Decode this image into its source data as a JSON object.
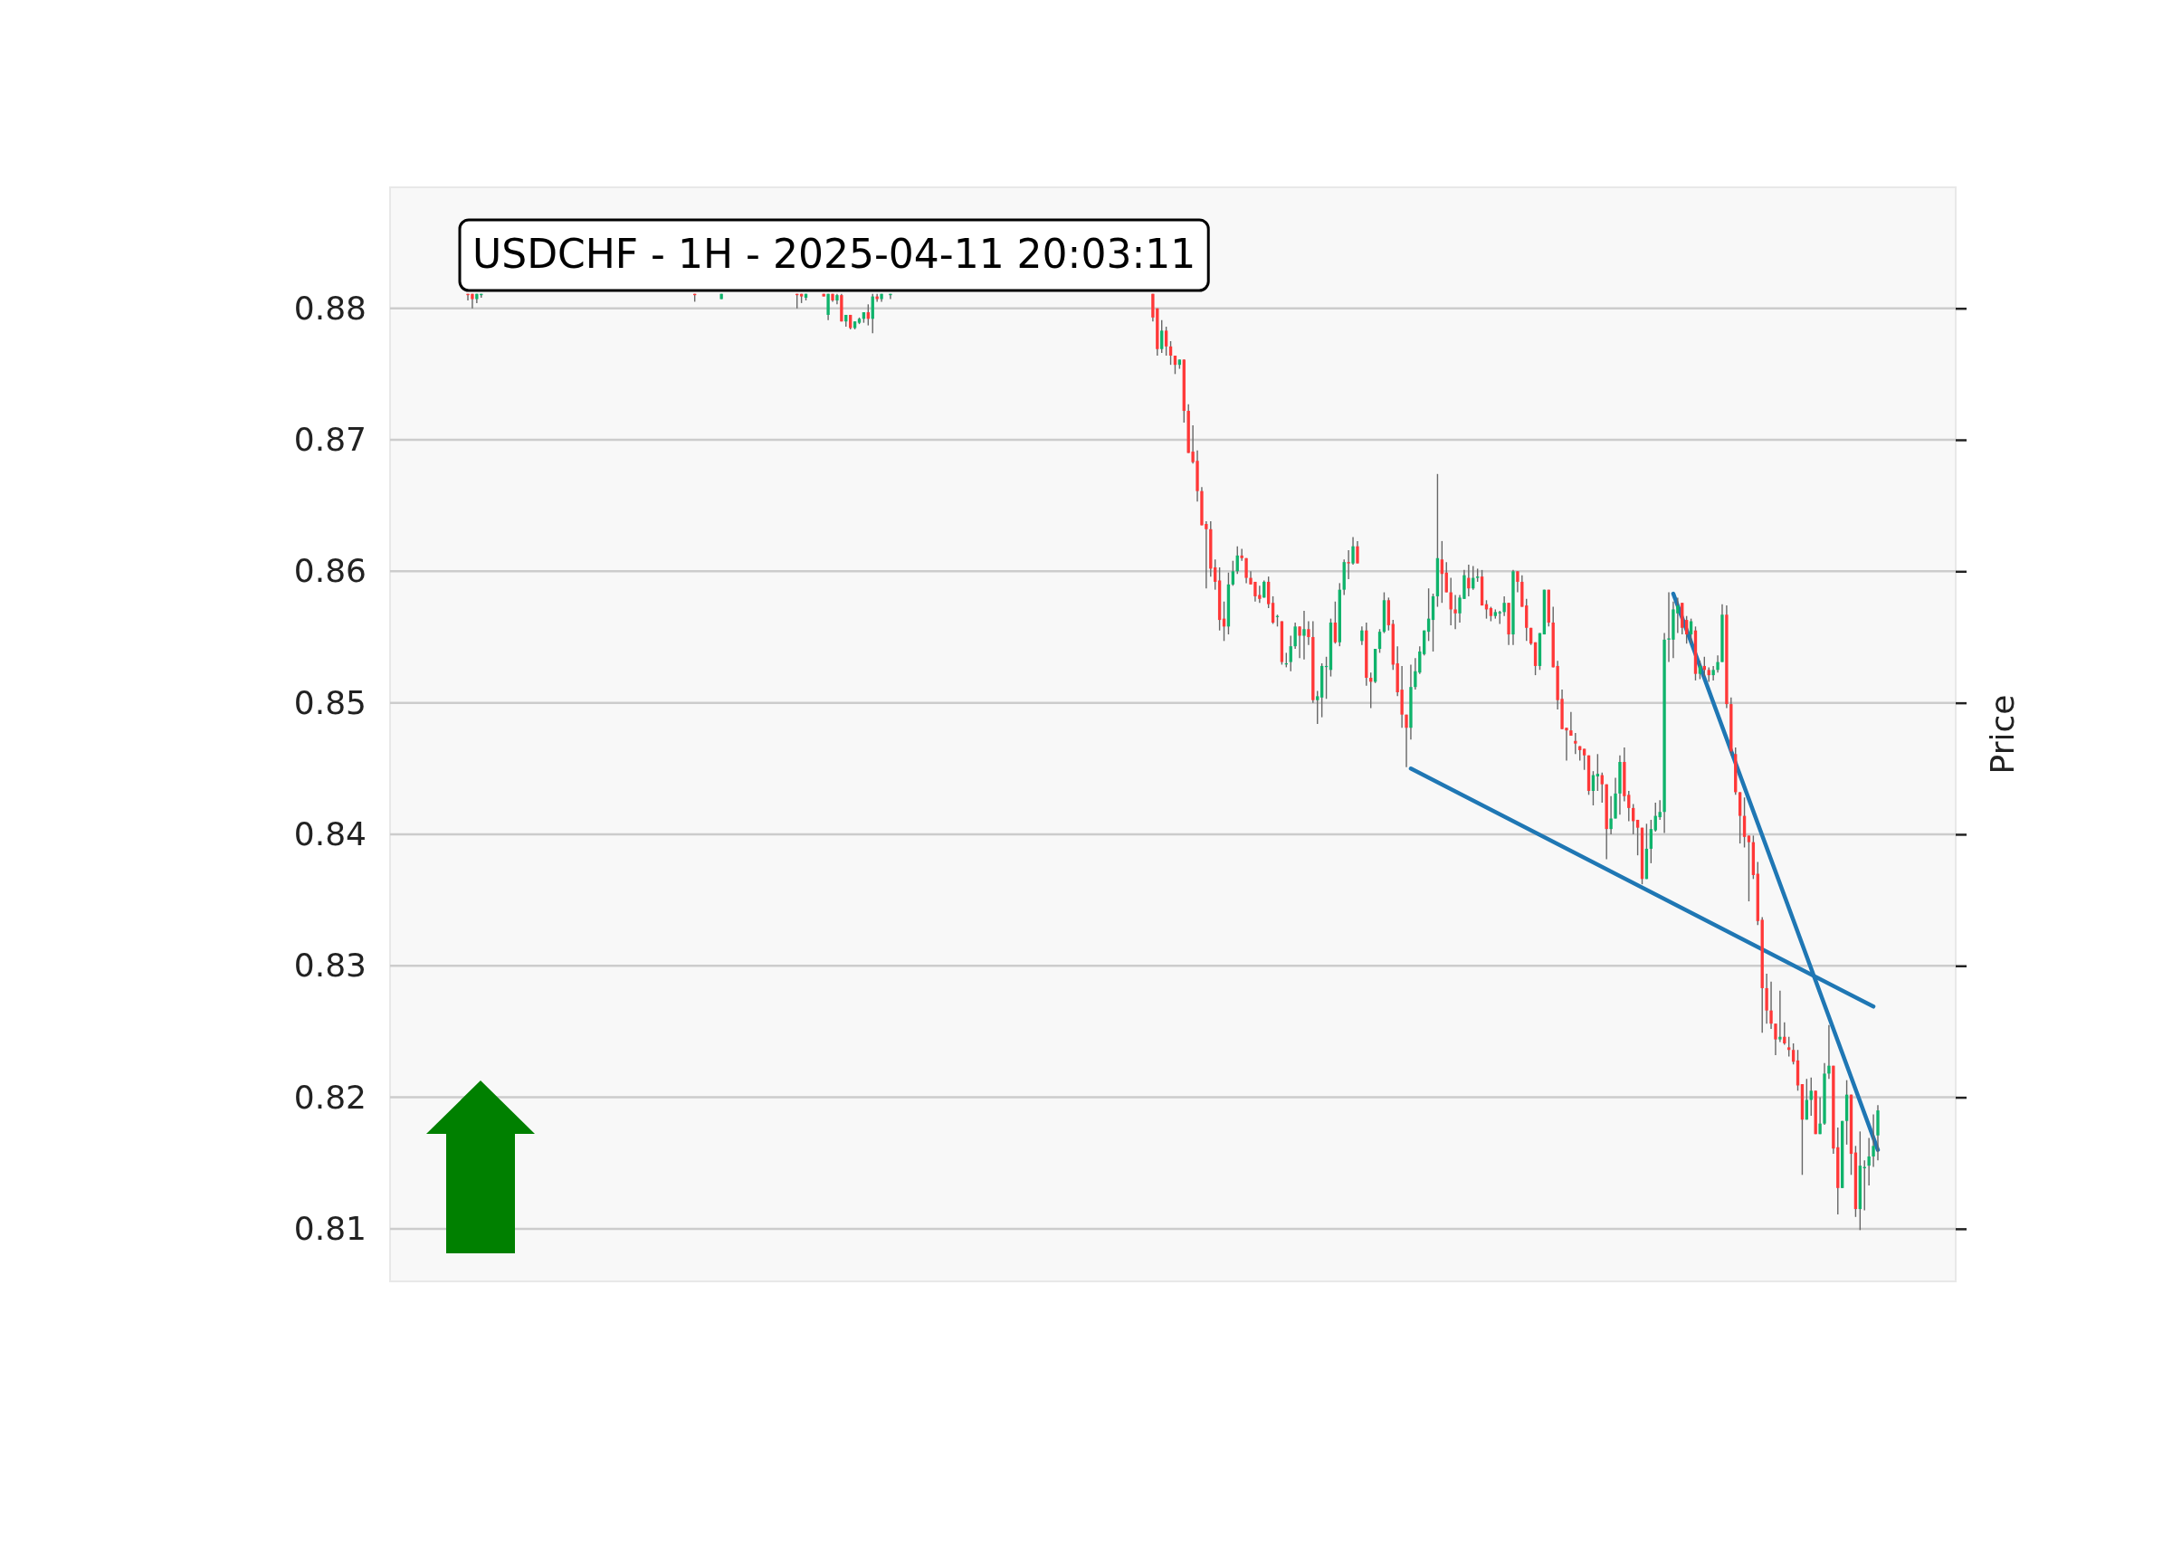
{
  "chart_data": {
    "type": "candlestick",
    "title": "USDCHF - 1H - 2025-04-11 20:03:11",
    "ylabel": "Price",
    "ylim": [
      0.806,
      0.8892
    ],
    "yticks": [
      0.81,
      0.82,
      0.83,
      0.84,
      0.85,
      0.86,
      0.87,
      0.88
    ],
    "grid": "y",
    "tick_labels": "y",
    "categories": [
      null,
      null,
      null,
      null,
      null,
      null,
      null,
      null,
      null,
      null,
      null,
      null,
      null,
      null,
      null,
      null,
      null,
      null,
      null,
      null,
      null,
      null,
      null,
      null,
      null,
      null,
      null,
      null,
      null,
      null,
      null,
      null,
      null,
      null,
      null,
      null,
      null,
      null,
      null,
      null,
      null,
      null,
      null,
      null,
      null,
      null,
      null,
      null,
      null,
      null,
      null,
      null,
      null,
      null,
      null,
      null,
      null,
      null,
      null,
      null,
      null,
      null,
      null,
      null,
      null,
      null,
      null,
      null,
      null,
      null,
      null,
      null,
      null,
      null,
      null,
      null,
      null,
      null,
      null,
      null,
      null,
      null,
      null,
      null,
      null,
      null,
      null,
      null,
      null,
      null,
      null,
      null,
      null,
      null,
      null,
      null,
      null,
      null,
      null,
      null,
      null,
      null,
      null,
      null,
      null,
      null,
      null,
      null,
      null,
      null,
      null,
      null,
      null,
      null,
      null,
      null,
      null,
      null,
      null,
      null,
      null,
      null,
      null,
      null,
      null,
      null,
      null,
      null,
      null,
      null,
      null,
      null,
      null,
      null,
      null,
      null,
      null,
      null,
      null,
      null,
      null,
      null,
      null,
      null,
      null,
      null,
      null,
      null,
      null,
      null,
      null,
      null,
      null,
      null,
      null,
      null,
      null,
      null,
      null,
      null,
      null,
      null,
      null,
      null,
      null,
      null,
      null,
      null,
      null,
      null,
      null,
      null,
      null,
      null,
      null,
      null,
      null,
      null,
      null,
      null,
      null,
      null,
      null,
      null,
      null,
      null,
      null,
      null,
      null,
      null,
      null,
      null,
      null,
      null,
      null,
      null,
      null,
      null,
      null,
      null,
      null,
      null,
      null,
      null,
      null,
      null,
      null,
      null,
      null,
      null,
      null,
      null,
      null,
      null,
      null,
      null,
      null,
      null,
      null,
      null,
      null,
      null,
      null,
      null,
      null,
      null,
      null,
      null,
      null,
      null,
      null,
      null,
      null,
      null,
      null,
      null,
      null,
      null,
      null,
      null,
      null,
      null,
      null,
      null,
      null,
      null,
      null,
      null,
      null,
      null,
      null,
      null,
      null,
      null,
      null,
      null,
      null,
      null,
      null,
      null,
      null,
      null,
      null,
      null,
      null,
      null,
      null,
      null,
      null,
      null,
      null,
      null,
      null,
      null,
      null,
      null,
      null,
      null,
      null,
      null,
      null,
      null,
      null,
      null,
      null,
      null,
      null,
      null,
      null,
      null,
      null,
      null,
      null,
      null,
      null,
      null,
      null,
      null,
      null,
      null,
      null,
      null,
      null,
      null,
      null,
      null,
      null,
      null,
      null,
      null,
      null,
      null,
      null,
      null,
      null,
      null,
      null,
      null,
      null,
      null,
      null,
      null,
      null,
      null,
      null,
      null,
      null,
      null,
      null,
      null,
      null,
      null,
      null,
      null,
      null,
      null,
      null,
      null,
      null,
      null,
      null,
      null,
      null,
      null,
      null,
      null,
      null,
      null,
      null,
      null,
      null,
      null
    ],
    "ohlc": [
      null,
      null,
      null,
      null,
      null,
      null,
      null,
      null,
      null,
      null,
      null,
      null,
      null,
      null,
      null,
      null,
      null,
      [
        0.8811,
        0.8811,
        0.8806,
        0.881
      ],
      [
        0.8811,
        0.8811,
        0.88,
        0.8807
      ],
      [
        0.8807,
        0.8811,
        0.8804,
        0.8811
      ],
      [
        0.881,
        0.8811,
        0.8808,
        0.8811
      ],
      null,
      null,
      null,
      null,
      null,
      null,
      null,
      null,
      null,
      null,
      null,
      null,
      null,
      null,
      null,
      null,
      null,
      null,
      null,
      null,
      null,
      null,
      null,
      null,
      null,
      null,
      null,
      null,
      null,
      null,
      null,
      null,
      null,
      null,
      null,
      null,
      null,
      null,
      null,
      null,
      null,
      null,
      null,
      null,
      null,
      null,
      null,
      [
        0.8811,
        0.8811,
        0.8805,
        0.881
      ],
      null,
      null,
      null,
      null,
      null,
      [
        0.8807,
        0.8811,
        0.8807,
        0.8811
      ],
      null,
      null,
      null,
      null,
      null,
      null,
      null,
      null,
      null,
      null,
      null,
      null,
      null,
      null,
      null,
      null,
      [
        0.8811,
        0.8811,
        0.88,
        0.881
      ],
      [
        0.8811,
        0.8811,
        0.8804,
        0.8809
      ],
      [
        0.8808,
        0.8811,
        0.8806,
        0.8811
      ],
      null,
      null,
      null,
      [
        0.8811,
        0.8811,
        0.8809,
        0.8809
      ],
      [
        0.8795,
        0.8811,
        0.8791,
        0.8811
      ],
      [
        0.8811,
        0.8811,
        0.8805,
        0.8806
      ],
      [
        0.8806,
        0.8811,
        0.8803,
        0.881
      ],
      [
        0.881,
        0.8811,
        0.879,
        0.879
      ],
      [
        0.879,
        0.8795,
        0.8786,
        0.8795
      ],
      [
        0.8795,
        0.8795,
        0.8784,
        0.8785
      ],
      [
        0.8785,
        0.879,
        0.8784,
        0.879
      ],
      [
        0.8789,
        0.8793,
        0.8788,
        0.8792
      ],
      [
        0.8792,
        0.8797,
        0.8789,
        0.8797
      ],
      [
        0.8797,
        0.8803,
        0.8787,
        0.8792
      ],
      [
        0.8792,
        0.8811,
        0.8781,
        0.8809
      ],
      [
        0.8809,
        0.8811,
        0.8805,
        0.8807
      ],
      [
        0.8807,
        0.8811,
        0.8805,
        0.8811
      ],
      null,
      [
        0.881,
        0.8811,
        0.8807,
        0.8811
      ],
      null,
      null,
      null,
      null,
      null,
      null,
      null,
      null,
      null,
      null,
      null,
      null,
      null,
      null,
      null,
      null,
      null,
      null,
      null,
      null,
      null,
      null,
      null,
      null,
      null,
      null,
      null,
      null,
      null,
      null,
      null,
      null,
      null,
      null,
      null,
      null,
      null,
      null,
      null,
      null,
      null,
      null,
      null,
      null,
      null,
      null,
      null,
      null,
      null,
      null,
      null,
      null,
      null,
      null,
      null,
      null,
      null,
      null,
      [
        0.8811,
        0.8811,
        0.879,
        0.8793
      ],
      [
        0.88,
        0.88,
        0.8764,
        0.8769
      ],
      [
        0.8769,
        0.8791,
        0.8766,
        0.8783
      ],
      [
        0.8783,
        0.8786,
        0.8764,
        0.8771
      ],
      [
        0.8771,
        0.8775,
        0.8757,
        0.8764
      ],
      [
        0.8764,
        0.8764,
        0.875,
        0.8757
      ],
      [
        0.8757,
        0.8761,
        0.8754,
        0.8761
      ],
      [
        0.8761,
        0.8761,
        0.8713,
        0.8722
      ],
      [
        0.8722,
        0.8727,
        0.869,
        0.869
      ],
      [
        0.8691,
        0.8711,
        0.8682,
        0.8683
      ],
      [
        0.8684,
        0.8692,
        0.8653,
        0.8661
      ],
      [
        0.8661,
        0.8664,
        0.8635,
        0.8635
      ],
      [
        0.8636,
        0.8638,
        0.8587,
        0.8632
      ],
      [
        0.8632,
        0.8638,
        0.8596,
        0.8602
      ],
      [
        0.8603,
        0.8609,
        0.8586,
        0.8592
      ],
      [
        0.8593,
        0.8603,
        0.8555,
        0.8563
      ],
      [
        0.8564,
        0.8577,
        0.8547,
        0.8558
      ],
      [
        0.8558,
        0.8599,
        0.8552,
        0.859
      ],
      [
        0.859,
        0.8608,
        0.8589,
        0.86
      ],
      [
        0.86,
        0.8619,
        0.8598,
        0.8612
      ],
      [
        0.8612,
        0.8617,
        0.8608,
        0.861
      ],
      [
        0.861,
        0.861,
        0.8591,
        0.8595
      ],
      [
        0.8595,
        0.86,
        0.859,
        0.859
      ],
      [
        0.8592,
        0.8592,
        0.8577,
        0.8581
      ],
      [
        0.8582,
        0.8589,
        0.8576,
        0.8579
      ],
      [
        0.858,
        0.8593,
        0.858,
        0.8592
      ],
      [
        0.8592,
        0.8596,
        0.8572,
        0.8575
      ],
      [
        0.8576,
        0.8581,
        0.856,
        0.8561
      ],
      [
        0.8566,
        0.8567,
        0.8558,
        0.8566
      ],
      [
        0.8562,
        0.8562,
        0.8529,
        0.8531
      ],
      [
        0.853,
        0.8538,
        0.8527,
        0.853
      ],
      [
        0.8531,
        0.8551,
        0.8524,
        0.8543
      ],
      [
        0.8543,
        0.8561,
        0.8541,
        0.8558
      ],
      [
        0.8558,
        0.8558,
        0.8534,
        0.8551
      ],
      [
        0.8551,
        0.857,
        0.8533,
        0.8556
      ],
      [
        0.8556,
        0.8562,
        0.8544,
        0.855
      ],
      [
        0.855,
        0.8562,
        0.85,
        0.8502
      ],
      [
        0.8502,
        0.8509,
        0.8484,
        0.8505
      ],
      [
        0.8504,
        0.853,
        0.8489,
        0.8528
      ],
      [
        0.8528,
        0.8535,
        0.8503,
        0.8528
      ],
      [
        0.8525,
        0.8564,
        0.852,
        0.8561
      ],
      [
        0.8561,
        0.8577,
        0.8545,
        0.8546
      ],
      [
        0.8546,
        0.8591,
        0.8543,
        0.8586
      ],
      [
        0.8586,
        0.8609,
        0.8582,
        0.8607
      ],
      [
        0.8607,
        0.8616,
        0.8594,
        0.8606
      ],
      [
        0.8606,
        0.8626,
        0.8605,
        0.8619
      ],
      [
        0.8619,
        0.8623,
        0.8606,
        0.8606
      ],
      [
        0.8547,
        0.8558,
        0.8544,
        0.8555
      ],
      [
        0.8555,
        0.8561,
        0.8513,
        0.8519
      ],
      [
        0.8519,
        0.8523,
        0.8496,
        0.8516
      ],
      [
        0.8516,
        0.8541,
        0.8515,
        0.8541
      ],
      [
        0.8541,
        0.8556,
        0.8538,
        0.8554
      ],
      [
        0.8554,
        0.8584,
        0.8553,
        0.8578
      ],
      [
        0.8578,
        0.858,
        0.8555,
        0.8559
      ],
      [
        0.856,
        0.8563,
        0.8525,
        0.8529
      ],
      [
        0.853,
        0.8543,
        0.8505,
        0.8508
      ],
      [
        0.851,
        0.8528,
        0.8481,
        0.8491
      ],
      [
        0.8491,
        0.8491,
        0.8451,
        0.8481
      ],
      [
        0.8481,
        0.8529,
        0.8472,
        0.8512
      ],
      [
        0.8512,
        0.8534,
        0.851,
        0.8524
      ],
      [
        0.8523,
        0.8543,
        0.8522,
        0.8539
      ],
      [
        0.8537,
        0.8555,
        0.8536,
        0.8555
      ],
      [
        0.8554,
        0.8587,
        0.8547,
        0.8564
      ],
      [
        0.8563,
        0.8583,
        0.8539,
        0.8581
      ],
      [
        0.8581,
        0.8674,
        0.8573,
        0.861
      ],
      [
        0.8609,
        0.8623,
        0.8576,
        0.8598
      ],
      [
        0.8599,
        0.8607,
        0.8584,
        0.8584
      ],
      [
        0.8584,
        0.8595,
        0.8559,
        0.8571
      ],
      [
        0.8571,
        0.8582,
        0.8556,
        0.8568
      ],
      [
        0.8568,
        0.8582,
        0.8561,
        0.858
      ],
      [
        0.8579,
        0.8601,
        0.8579,
        0.8597
      ],
      [
        0.8595,
        0.8605,
        0.8581,
        0.8587
      ],
      [
        0.8587,
        0.8604,
        0.8586,
        0.8595
      ],
      [
        0.8595,
        0.8602,
        0.8592,
        0.8596
      ],
      [
        0.8596,
        0.8601,
        0.8574,
        0.8574
      ],
      [
        0.8575,
        0.8578,
        0.8564,
        0.8571
      ],
      [
        0.8572,
        0.8573,
        0.8562,
        0.8566
      ],
      [
        0.8566,
        0.8571,
        0.8564,
        0.8569
      ],
      [
        0.8568,
        0.857,
        0.856,
        0.8569
      ],
      [
        0.8569,
        0.8581,
        0.8566,
        0.8576
      ],
      [
        0.8576,
        0.8576,
        0.8544,
        0.8552
      ],
      [
        0.8552,
        0.8601,
        0.8544,
        0.86
      ],
      [
        0.86,
        0.86,
        0.8584,
        0.8592
      ],
      [
        0.8592,
        0.8597,
        0.8573,
        0.8573
      ],
      [
        0.8574,
        0.8579,
        0.8547,
        0.8557
      ],
      [
        0.8557,
        0.8557,
        0.8544,
        0.8545
      ],
      [
        0.8546,
        0.8546,
        0.8521,
        0.8528
      ],
      [
        0.8528,
        0.8553,
        0.8525,
        0.8553
      ],
      [
        0.8552,
        0.8586,
        0.8552,
        0.8586
      ],
      [
        0.8586,
        0.8586,
        0.8558,
        0.8561
      ],
      [
        0.8561,
        0.8573,
        0.8527,
        0.8527
      ],
      [
        0.8528,
        0.8532,
        0.8495,
        0.8502
      ],
      [
        0.8503,
        0.851,
        0.848,
        0.848
      ],
      [
        0.8481,
        0.8481,
        0.8456,
        0.8479
      ],
      [
        0.8479,
        0.8493,
        0.8475,
        0.8475
      ],
      [
        0.8471,
        0.8477,
        0.8461,
        0.8469
      ],
      [
        0.8467,
        0.8467,
        0.8456,
        0.8464
      ],
      [
        0.8465,
        0.8465,
        0.8449,
        0.846
      ],
      [
        0.846,
        0.846,
        0.843,
        0.8433
      ],
      [
        0.8433,
        0.8448,
        0.8422,
        0.8445
      ],
      [
        0.8444,
        0.8461,
        0.8433,
        0.8446
      ],
      [
        0.8445,
        0.8447,
        0.8424,
        0.8438
      ],
      [
        0.8438,
        0.8438,
        0.8381,
        0.8404
      ],
      [
        0.8404,
        0.8429,
        0.84,
        0.8412
      ],
      [
        0.8412,
        0.8443,
        0.8412,
        0.8431
      ],
      [
        0.8431,
        0.846,
        0.8415,
        0.8455
      ],
      [
        0.8455,
        0.8466,
        0.8425,
        0.8429
      ],
      [
        0.843,
        0.8433,
        0.841,
        0.842
      ],
      [
        0.842,
        0.8423,
        0.84,
        0.841
      ],
      [
        0.8411,
        0.8411,
        0.8384,
        0.8405
      ],
      [
        0.8405,
        0.8405,
        0.8362,
        0.8366
      ],
      [
        0.8366,
        0.8408,
        0.8366,
        0.8389
      ],
      [
        0.8389,
        0.8411,
        0.8378,
        0.8404
      ],
      [
        0.8403,
        0.8424,
        0.8402,
        0.8414
      ],
      [
        0.8413,
        0.8426,
        0.8411,
        0.8417
      ],
      [
        0.8417,
        0.8553,
        0.8401,
        0.8548
      ],
      [
        0.8548,
        0.8584,
        0.8531,
        0.8549
      ],
      [
        0.8548,
        0.8577,
        0.8534,
        0.8571
      ],
      [
        0.8568,
        0.858,
        0.8553,
        0.8574
      ],
      [
        0.8576,
        0.8576,
        0.8552,
        0.8557
      ],
      [
        0.8563,
        0.8566,
        0.8545,
        0.8552
      ],
      [
        0.8552,
        0.8564,
        0.8545,
        0.8562
      ],
      [
        0.8555,
        0.8558,
        0.8517,
        0.8522
      ],
      [
        0.8522,
        0.8532,
        0.8518,
        0.8528
      ],
      [
        0.8528,
        0.8535,
        0.852,
        0.8525
      ],
      [
        0.8525,
        0.8527,
        0.8516,
        0.8521
      ],
      [
        0.8521,
        0.8528,
        0.8517,
        0.8525
      ],
      [
        0.8525,
        0.8536,
        0.8523,
        0.8531
      ],
      [
        0.8531,
        0.8575,
        0.8531,
        0.8567
      ],
      [
        0.8567,
        0.8574,
        0.8496,
        0.8499
      ],
      [
        0.8499,
        0.8504,
        0.846,
        0.8463
      ],
      [
        0.8461,
        0.8466,
        0.843,
        0.8432
      ],
      [
        0.8432,
        0.8432,
        0.8393,
        0.8414
      ],
      [
        0.8414,
        0.8428,
        0.839,
        0.8398
      ],
      [
        0.8399,
        0.8399,
        0.8349,
        0.8394
      ],
      [
        0.8394,
        0.8399,
        0.8366,
        0.8369
      ],
      [
        0.837,
        0.8379,
        0.8331,
        0.8334
      ],
      [
        0.8335,
        0.8337,
        0.8249,
        0.8283
      ],
      [
        0.8283,
        0.8294,
        0.8256,
        0.8266
      ],
      [
        0.8266,
        0.8288,
        0.8252,
        0.8256
      ],
      [
        0.8256,
        0.8256,
        0.8232,
        0.8244
      ],
      [
        0.8244,
        0.8281,
        0.8242,
        0.8246
      ],
      [
        0.8246,
        0.8257,
        0.824,
        0.8241
      ],
      [
        0.8238,
        0.8246,
        0.8231,
        0.8236
      ],
      [
        0.8236,
        0.8241,
        0.8225,
        0.8227
      ],
      [
        0.8228,
        0.8236,
        0.8205,
        0.8209
      ],
      [
        0.821,
        0.821,
        0.8141,
        0.8183
      ],
      [
        0.8183,
        0.8214,
        0.8183,
        0.8198
      ],
      [
        0.8198,
        0.8215,
        0.8186,
        0.8205
      ],
      [
        0.8205,
        0.8205,
        0.8172,
        0.8172
      ],
      [
        0.8172,
        0.82,
        0.8172,
        0.818
      ],
      [
        0.818,
        0.8226,
        0.8179,
        0.8218
      ],
      [
        0.8218,
        0.8255,
        0.8214,
        0.8224
      ],
      [
        0.8224,
        0.8224,
        0.8157,
        0.8161
      ],
      [
        0.8162,
        0.8177,
        0.8111,
        0.8131
      ],
      [
        0.8131,
        0.8182,
        0.8131,
        0.8182
      ],
      [
        0.8182,
        0.8213,
        0.8164,
        0.8202
      ],
      [
        0.8202,
        0.8202,
        0.8141,
        0.8157
      ],
      [
        0.8158,
        0.8163,
        0.8109,
        0.8115
      ],
      [
        0.8115,
        0.8174,
        0.8099,
        0.8148
      ],
      [
        0.8146,
        0.8152,
        0.8114,
        0.8147
      ],
      [
        0.8148,
        0.8169,
        0.8133,
        0.8155
      ],
      [
        0.8155,
        0.8187,
        0.8147,
        0.8163
      ],
      [
        0.8171,
        0.8194,
        0.8152,
        0.819
      ],
      null,
      null,
      null,
      null,
      null,
      null,
      null,
      null,
      null,
      null,
      null,
      null,
      null,
      null,
      null,
      null,
      null
    ],
    "series": [
      {
        "type": "line",
        "color": "#1f77b4",
        "values": [
          null,
          null,
          null,
          null,
          null,
          null,
          null,
          null,
          null,
          null,
          null,
          null,
          null,
          null,
          null,
          null,
          null,
          null,
          null,
          null,
          null,
          null,
          null,
          null,
          null,
          null,
          null,
          null,
          null,
          null,
          null,
          null,
          null,
          null,
          null,
          null,
          null,
          null,
          null,
          null,
          null,
          null,
          null,
          null,
          null,
          null,
          null,
          null,
          null,
          null,
          null,
          null,
          null,
          null,
          null,
          null,
          null,
          null,
          null,
          null,
          null,
          null,
          null,
          null,
          null,
          null,
          null,
          null,
          null,
          null,
          null,
          null,
          null,
          null,
          null,
          null,
          null,
          null,
          null,
          null,
          null,
          null,
          null,
          null,
          null,
          null,
          null,
          null,
          null,
          null,
          null,
          null,
          null,
          null,
          null,
          null,
          null,
          null,
          null,
          null,
          null,
          null,
          null,
          null,
          null,
          null,
          null,
          null,
          null,
          null,
          null,
          null,
          null,
          null,
          null,
          null,
          null,
          null,
          null,
          null,
          null,
          null,
          null,
          null,
          null,
          null,
          null,
          null,
          null,
          null,
          null,
          null,
          null,
          null,
          null,
          null,
          null,
          null,
          null,
          null,
          null,
          null,
          null,
          null,
          null,
          null,
          null,
          null,
          null,
          null,
          null,
          null,
          null,
          null,
          null,
          null,
          null,
          null,
          null,
          null,
          null,
          null,
          null,
          null,
          null,
          null,
          null,
          null,
          null,
          null,
          null,
          null,
          null,
          null,
          null,
          null,
          null,
          null,
          null,
          null,
          null,
          null,
          null,
          null,
          null,
          null,
          null,
          null,
          null,
          null,
          null,
          null,
          null,
          null,
          null,
          null,
          null,
          null,
          null,
          null,
          null,
          null,
          null,
          null,
          null,
          null,
          null,
          null,
          null,
          null,
          null,
          null,
          null,
          null,
          null,
          null,
          null,
          null,
          null,
          null,
          null,
          null,
          null,
          null,
          null,
          null,
          null,
          null,
          null,
          0.845,
          null,
          null,
          null,
          null,
          null,
          null,
          null,
          null,
          null,
          null,
          null,
          null,
          null,
          null,
          null,
          null,
          null,
          null,
          null,
          null,
          null,
          null,
          null,
          null,
          null,
          null,
          null,
          null,
          null,
          null,
          null,
          null,
          null,
          null,
          null,
          null,
          null,
          null,
          null,
          null,
          null,
          null,
          null,
          null,
          null,
          null,
          null,
          null,
          null,
          null,
          null,
          null,
          null,
          null,
          null,
          null,
          null,
          null,
          null,
          null,
          null,
          null,
          null,
          null,
          null,
          null,
          null,
          null,
          null,
          null,
          null,
          null,
          null,
          null,
          null,
          null,
          null,
          null,
          null,
          null,
          null,
          null,
          null,
          null,
          null,
          null,
          null,
          null,
          null,
          null,
          null,
          null,
          null,
          null,
          null,
          null,
          null,
          null,
          null,
          null,
          null,
          null,
          null,
          0.8269,
          null,
          null,
          null,
          null,
          null,
          null,
          null,
          null,
          null,
          null,
          null,
          null,
          null,
          null,
          null,
          null,
          null,
          null
        ]
      },
      {
        "type": "line",
        "color": "#1f77b4",
        "values": [
          null,
          null,
          null,
          null,
          null,
          null,
          null,
          null,
          null,
          null,
          null,
          null,
          null,
          null,
          null,
          null,
          null,
          null,
          null,
          null,
          null,
          null,
          null,
          null,
          null,
          null,
          null,
          null,
          null,
          null,
          null,
          null,
          null,
          null,
          null,
          null,
          null,
          null,
          null,
          null,
          null,
          null,
          null,
          null,
          null,
          null,
          null,
          null,
          null,
          null,
          null,
          null,
          null,
          null,
          null,
          null,
          null,
          null,
          null,
          null,
          null,
          null,
          null,
          null,
          null,
          null,
          null,
          null,
          null,
          null,
          null,
          null,
          null,
          null,
          null,
          null,
          null,
          null,
          null,
          null,
          null,
          null,
          null,
          null,
          null,
          null,
          null,
          null,
          null,
          null,
          null,
          null,
          null,
          null,
          null,
          null,
          null,
          null,
          null,
          null,
          null,
          null,
          null,
          null,
          null,
          null,
          null,
          null,
          null,
          null,
          null,
          null,
          null,
          null,
          null,
          null,
          null,
          null,
          null,
          null,
          null,
          null,
          null,
          null,
          null,
          null,
          null,
          null,
          null,
          null,
          null,
          null,
          null,
          null,
          null,
          null,
          null,
          null,
          null,
          null,
          null,
          null,
          null,
          null,
          null,
          null,
          null,
          null,
          null,
          null,
          null,
          null,
          null,
          null,
          null,
          null,
          null,
          null,
          null,
          null,
          null,
          null,
          null,
          null,
          null,
          null,
          null,
          null,
          null,
          null,
          null,
          null,
          null,
          null,
          null,
          null,
          null,
          null,
          null,
          null,
          null,
          null,
          null,
          null,
          null,
          null,
          null,
          null,
          null,
          null,
          null,
          null,
          null,
          null,
          null,
          null,
          null,
          null,
          null,
          null,
          null,
          null,
          null,
          null,
          null,
          null,
          null,
          null,
          null,
          null,
          null,
          null,
          null,
          null,
          null,
          null,
          null,
          null,
          null,
          null,
          null,
          null,
          null,
          null,
          null,
          null,
          null,
          null,
          null,
          null,
          null,
          null,
          null,
          null,
          null,
          null,
          null,
          null,
          null,
          null,
          null,
          null,
          null,
          null,
          null,
          null,
          null,
          null,
          null,
          null,
          null,
          null,
          null,
          null,
          null,
          null,
          null,
          null,
          null,
          null,
          null,
          null,
          null,
          null,
          null,
          null,
          null,
          null,
          null,
          null,
          null,
          null,
          null,
          null,
          null,
          null,
          null,
          null,
          null,
          null,
          null,
          null,
          null,
          null,
          null,
          null,
          null,
          null,
          0.8583,
          null,
          null,
          null,
          null,
          null,
          null,
          null,
          null,
          null,
          null,
          null,
          null,
          null,
          null,
          null,
          null,
          null,
          null,
          null,
          null,
          null,
          null,
          null,
          null,
          null,
          null,
          null,
          null,
          null,
          null,
          null,
          null,
          null,
          null,
          null,
          null,
          null,
          null,
          null,
          null,
          null,
          null,
          null,
          null,
          null,
          0.816,
          null,
          null,
          null,
          null,
          null,
          null,
          null,
          null,
          null,
          null,
          null,
          null,
          null,
          null,
          null,
          null,
          null
        ]
      }
    ]
  }
}
